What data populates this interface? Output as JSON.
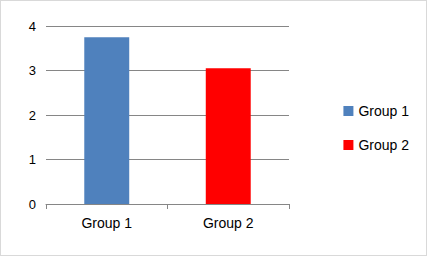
{
  "chart_data": {
    "type": "bar",
    "categories": [
      "Group 1",
      "Group 2"
    ],
    "series": [
      {
        "name": "Group 1",
        "color": "#4f81bd",
        "values": [
          3.75,
          null
        ]
      },
      {
        "name": "Group 2",
        "color": "#ff0000",
        "values": [
          null,
          3.05
        ]
      }
    ],
    "stacked": true,
    "ylim": [
      0,
      4
    ],
    "yticks": [
      0,
      1,
      2,
      3,
      4
    ],
    "grid": true,
    "legend": "right"
  }
}
